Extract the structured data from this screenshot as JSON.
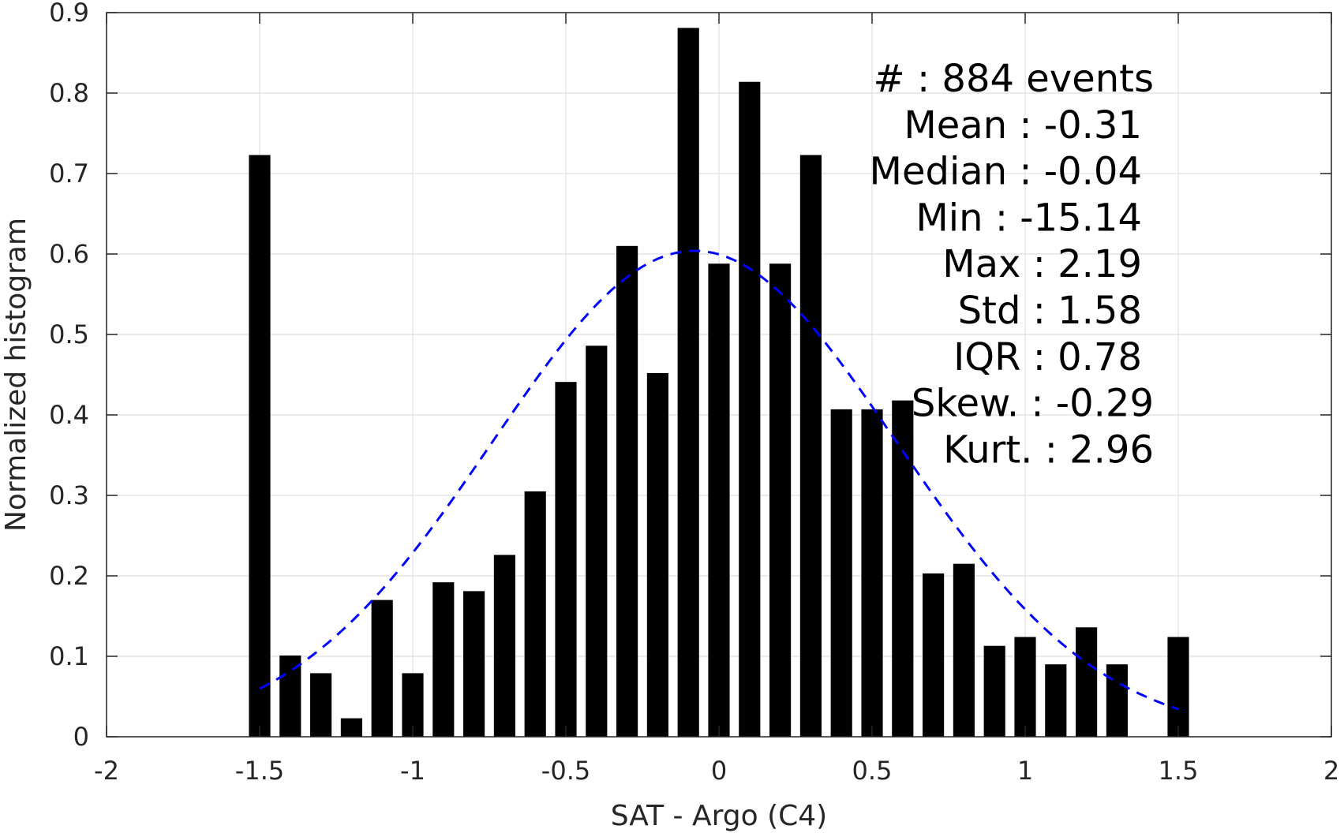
{
  "chart_data": {
    "type": "bar",
    "xlabel": "SAT - Argo (C4)",
    "ylabel": "Normalized histogram",
    "xlim": [
      -2,
      2
    ],
    "ylim": [
      0,
      0.9
    ],
    "xticks": [
      "-2",
      "-1.5",
      "-1",
      "-0.5",
      "0",
      "0.5",
      "1",
      "1.5",
      "2"
    ],
    "yticks": [
      "0",
      "0.1",
      "0.2",
      "0.3",
      "0.4",
      "0.5",
      "0.6",
      "0.7",
      "0.8",
      "0.9"
    ],
    "grid": true,
    "bar_color": "#000000",
    "bar_width": 0.07,
    "x": [
      -1.5,
      -1.4,
      -1.3,
      -1.2,
      -1.1,
      -1.0,
      -0.9,
      -0.8,
      -0.7,
      -0.6,
      -0.5,
      -0.4,
      -0.3,
      -0.2,
      -0.1,
      0.0,
      0.1,
      0.2,
      0.3,
      0.4,
      0.5,
      0.6,
      0.7,
      0.8,
      0.9,
      1.0,
      1.1,
      1.2,
      1.3,
      1.5
    ],
    "values": [
      0.723,
      0.101,
      0.079,
      0.023,
      0.17,
      0.079,
      0.192,
      0.181,
      0.226,
      0.305,
      0.441,
      0.486,
      0.61,
      0.452,
      0.881,
      0.588,
      0.814,
      0.588,
      0.723,
      0.407,
      0.407,
      0.418,
      0.203,
      0.215,
      0.113,
      0.124,
      0.09,
      0.136,
      0.09,
      0.124
    ],
    "fit_curve": {
      "style": "dashed",
      "color": "#0000ff",
      "x_range": [
        -1.5,
        1.5
      ],
      "peak_y": 0.604,
      "center_x": -0.08,
      "std": 0.66
    },
    "annotations": [
      {
        "label": "#  ",
        "value": ": 884 events"
      },
      {
        "label": "Mean ",
        "value": ": -0.31"
      },
      {
        "label": "Median ",
        "value": ": -0.04"
      },
      {
        "label": "Min ",
        "value": ": -15.14"
      },
      {
        "label": "Max ",
        "value": ": 2.19"
      },
      {
        "label": "Std ",
        "value": ": 1.58"
      },
      {
        "label": "IQR ",
        "value": ": 0.78"
      },
      {
        "label": "Skew. ",
        "value": ": -0.29"
      },
      {
        "label": "Kurt. ",
        "value": ": 2.96"
      }
    ]
  }
}
